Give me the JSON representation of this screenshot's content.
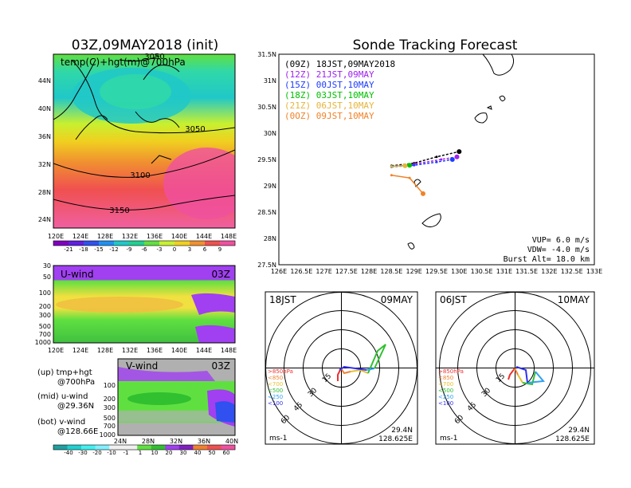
{
  "chart_data": [
    {
      "type": "heatmap",
      "title": "03Z,09MAY2018 (init)",
      "subtitle": "temp(C)+hgt(m)@700hPa",
      "x_ticks": [
        "120E",
        "124E",
        "128E",
        "132E",
        "136E",
        "140E",
        "144E",
        "148E"
      ],
      "y_ticks": [
        "24N",
        "28N",
        "32N",
        "36N",
        "40N",
        "44N"
      ],
      "contours": [
        "3050",
        "3100",
        "3150",
        "3050"
      ],
      "colorbar": [
        "-21",
        "-18",
        "-15",
        "-12",
        "-9",
        "-6",
        "-3",
        "0",
        "3",
        "6",
        "9"
      ],
      "colors": [
        "#8000c0",
        "#6020e0",
        "#3050f0",
        "#2090f0",
        "#20c8c8",
        "#20d090",
        "#60e040",
        "#c8f030",
        "#f0d020",
        "#f09030",
        "#f05050",
        "#f050a0"
      ]
    },
    {
      "type": "heatmap",
      "title": "U-wind",
      "time": "03Z",
      "x_ticks": [
        "120E",
        "124E",
        "128E",
        "132E",
        "136E",
        "140E",
        "144E",
        "148E"
      ],
      "y_ticks": [
        "30",
        "50",
        "100",
        "200",
        "300",
        "500",
        "700",
        "1000"
      ]
    },
    {
      "type": "heatmap",
      "title": "V-wind",
      "time": "03Z",
      "x_ticks": [
        "24N",
        "28N",
        "32N",
        "36N",
        "40N"
      ],
      "y_ticks": [
        "100",
        "200",
        "300",
        "500",
        "700",
        "1000"
      ],
      "colorbar": [
        "-40",
        "-30",
        "-20",
        "-10",
        "-1",
        "1",
        "10",
        "20",
        "30",
        "40",
        "50",
        "60"
      ]
    },
    {
      "type": "line",
      "title": "Sonde Tracking Forecast",
      "xlim": [
        126,
        133
      ],
      "ylim": [
        27.5,
        31.5
      ],
      "x_ticks": [
        "126E",
        "126.5E",
        "127E",
        "127.5E",
        "128E",
        "128.5E",
        "129E",
        "129.5E",
        "130E",
        "130.5E",
        "131E",
        "131.5E",
        "132E",
        "132.5E",
        "133E"
      ],
      "y_ticks": [
        "27.5N",
        "28N",
        "28.5N",
        "29N",
        "29.5N",
        "30N",
        "30.5N",
        "31N",
        "31.5N"
      ],
      "series": [
        {
          "name": "(09Z)  18JST,09MAY2018",
          "color": "#000000",
          "x": [
            128.5,
            129.0,
            129.5,
            130.0
          ],
          "y": [
            29.38,
            29.43,
            29.55,
            29.65
          ]
        },
        {
          "name": "(12Z)  21JST,09MAY",
          "color": "#a020f0",
          "x": [
            128.5,
            129.0,
            129.6,
            129.95
          ],
          "y": [
            29.37,
            29.41,
            29.5,
            29.55
          ]
        },
        {
          "name": "(15Z)  00JST,10MAY",
          "color": "#1e3cff",
          "x": [
            128.5,
            129.0,
            129.5,
            129.85
          ],
          "y": [
            29.36,
            29.39,
            29.45,
            29.5
          ]
        },
        {
          "name": "(18Z)  03JST,10MAY",
          "color": "#00c000",
          "x": [
            128.5,
            128.9
          ],
          "y": [
            29.37,
            29.39
          ]
        },
        {
          "name": "(21Z)  06JST,10MAY",
          "color": "#e6b43c",
          "x": [
            128.5,
            128.8
          ],
          "y": [
            29.37,
            29.38
          ]
        },
        {
          "name": "(0OZ)  09JST,10MAY",
          "color": "#f08228",
          "x": [
            128.5,
            128.9,
            129.2
          ],
          "y": [
            29.2,
            29.15,
            28.85
          ]
        }
      ],
      "params": [
        "VUP=  6.0 m/s",
        "VDW= -4.0 m/s",
        "Burst Alt= 18.0 km"
      ]
    },
    {
      "type": "scatter",
      "title": "18JST",
      "date": "09MAY",
      "ring_labels": [
        "15",
        "30",
        "45",
        "60"
      ],
      "legend": [
        ">850hPa",
        "<850",
        "<700",
        "<500",
        "<250",
        "<100"
      ],
      "legend_colors": [
        "#f03030",
        "#f08030",
        "#e6c030",
        "#30c030",
        "#30a0f0",
        "#3030f0"
      ],
      "unit": "ms-1",
      "lat": "29.4N",
      "lon": "128.625E"
    },
    {
      "type": "scatter",
      "title": "06JST",
      "date": "10MAY",
      "ring_labels": [
        "15",
        "30",
        "45",
        "60"
      ],
      "legend": [
        ">850hPa",
        "<850",
        "<700",
        "<500",
        "<250",
        "<100"
      ],
      "legend_colors": [
        "#f03030",
        "#f08030",
        "#e6c030",
        "#30c030",
        "#30a0f0",
        "#3030f0"
      ],
      "unit": "ms-1",
      "lat": "29.4N",
      "lon": "128.625E"
    }
  ],
  "captions": [
    {
      "text": "(up) tmp+hgt"
    },
    {
      "text": "@700hPa"
    },
    {
      "text": "(mid) u-wind"
    },
    {
      "text": "@29.36N"
    },
    {
      "text": "(bot) v-wind"
    },
    {
      "text": "@128.66E"
    }
  ]
}
